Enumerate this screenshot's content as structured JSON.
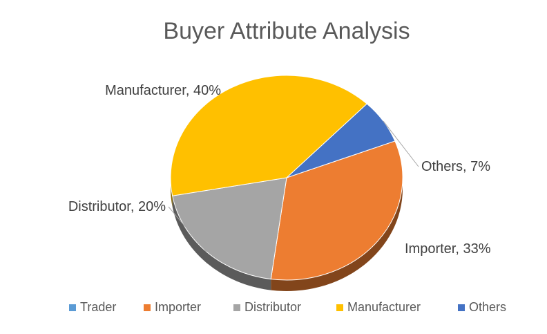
{
  "chart_data": {
    "type": "pie",
    "title": "Buyer Attribute Analysis",
    "three_d": true,
    "legend_position": "bottom",
    "slices": [
      {
        "label": "Trader",
        "value": 0,
        "color": "#5B9BD5",
        "data_label": ""
      },
      {
        "label": "Importer",
        "value": 33,
        "color": "#ED7D31",
        "data_label": "Importer, 33%"
      },
      {
        "label": "Distributor",
        "value": 20,
        "color": "#A5A5A5",
        "data_label": "Distributor, 20%"
      },
      {
        "label": "Manufacturer",
        "value": 40,
        "color": "#FFC000",
        "data_label": "Manufacturer, 40%"
      },
      {
        "label": "Others",
        "value": 7,
        "color": "#4472C4",
        "data_label": "Others, 7%"
      }
    ]
  }
}
